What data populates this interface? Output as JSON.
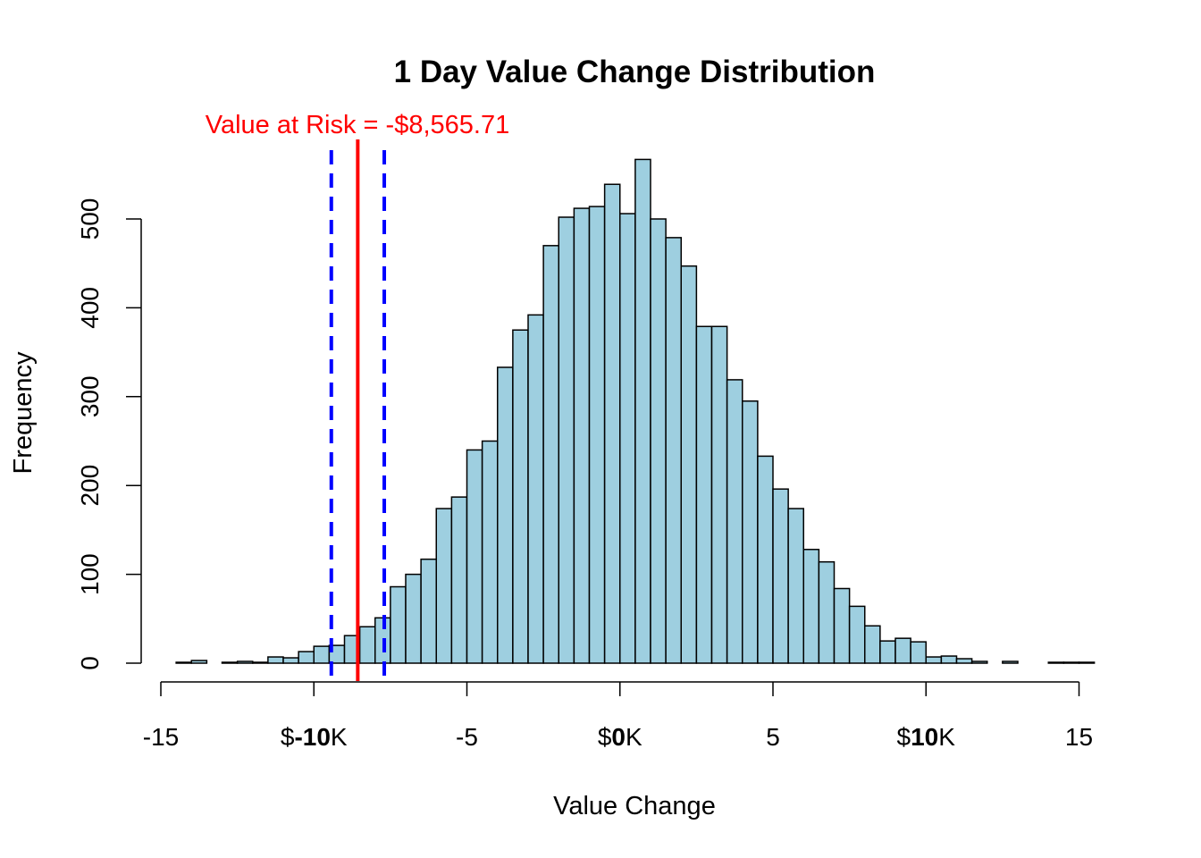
{
  "chart_data": {
    "type": "bar",
    "title": "1 Day Value Change Distribution",
    "xlabel": "Value Change",
    "ylabel": "Frequency",
    "xlim": [
      -15,
      15.5
    ],
    "ylim": [
      0,
      570
    ],
    "bin_width": 0.5,
    "bins_start": [
      -14.5,
      -14,
      -13.5,
      -13,
      -12.5,
      -12,
      -11.5,
      -11,
      -10.5,
      -10,
      -9.5,
      -9,
      -8.5,
      -8,
      -7.5,
      -7,
      -6.5,
      -6,
      -5.5,
      -5,
      -4.5,
      -4,
      -3.5,
      -3,
      -2.5,
      -2,
      -1.5,
      -1,
      -0.5,
      0,
      0.5,
      1,
      1.5,
      2,
      2.5,
      3,
      3.5,
      4,
      4.5,
      5,
      5.5,
      6,
      6.5,
      7,
      7.5,
      8,
      8.5,
      9,
      9.5,
      10,
      10.5,
      11,
      11.5,
      12,
      12.5,
      13,
      13.5,
      14,
      14.5,
      15
    ],
    "counts": [
      1,
      3,
      0,
      1,
      2,
      1,
      7,
      6,
      13,
      19,
      20,
      31,
      41,
      51,
      86,
      100,
      117,
      174,
      187,
      240,
      250,
      333,
      375,
      392,
      470,
      502,
      512,
      514,
      539,
      506,
      567,
      500,
      479,
      447,
      379,
      379,
      319,
      295,
      233,
      196,
      174,
      128,
      114,
      84,
      64,
      42,
      25,
      28,
      24,
      7,
      8,
      5,
      2,
      0,
      2,
      0,
      0,
      1,
      1,
      1
    ],
    "x_ticks": [
      {
        "value": -15,
        "prefix": "",
        "bold": "",
        "suffix": "-15"
      },
      {
        "value": -10,
        "prefix": "$",
        "bold": "-10",
        "suffix": "K"
      },
      {
        "value": -5,
        "prefix": "",
        "bold": "",
        "suffix": "-5"
      },
      {
        "value": 0,
        "prefix": "$",
        "bold": "0",
        "suffix": "K"
      },
      {
        "value": 5,
        "prefix": "",
        "bold": "",
        "suffix": "5"
      },
      {
        "value": 10,
        "prefix": "$",
        "bold": "10",
        "suffix": "K"
      },
      {
        "value": 15,
        "prefix": "",
        "bold": "",
        "suffix": "15"
      }
    ],
    "y_ticks": [
      0,
      100,
      200,
      300,
      400,
      500
    ],
    "var_line": {
      "x": -8.566,
      "label": "Value at Risk = -$8,565.71"
    },
    "ci_lines": [
      -9.43,
      -7.7
    ],
    "colors": {
      "bar_fill": "#9ecfe0",
      "bar_stroke": "#000000",
      "var_line": "#ff0000",
      "ci_lines": "#0000ff",
      "var_label": "#ff0000"
    }
  }
}
